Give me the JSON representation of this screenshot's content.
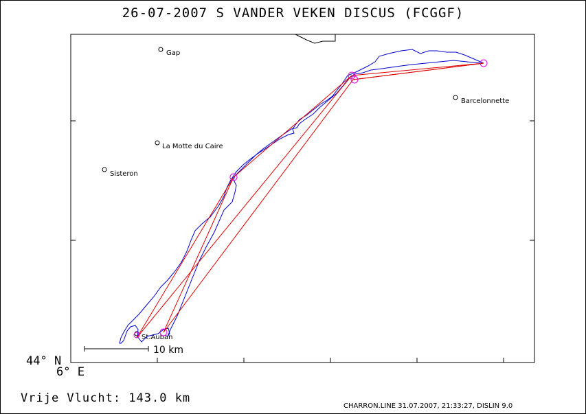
{
  "header": {
    "title": "26-07-2007    S VANDER VEKEN    DISCUS (FCGGF)"
  },
  "footer": {
    "distance": "Vrije Vlucht:  143.0 km",
    "credits": "CHARRON.LINE 31.07.2007, 21:33:27, DISLIN 9.0"
  },
  "axes": {
    "lat_label": "44° N",
    "lon_label": "6° E"
  },
  "scale_bar": {
    "label": "10 km",
    "km": 10
  },
  "places": [
    {
      "name": "Gap"
    },
    {
      "name": "La Motte du Caire"
    },
    {
      "name": "Sisteron"
    },
    {
      "name": "Barcelonnette"
    },
    {
      "name": "St.Auban"
    }
  ],
  "colors": {
    "track": "#0000cc",
    "task": "#dd0000",
    "turnpoint": "#dd00dd",
    "border": "#000000"
  }
}
